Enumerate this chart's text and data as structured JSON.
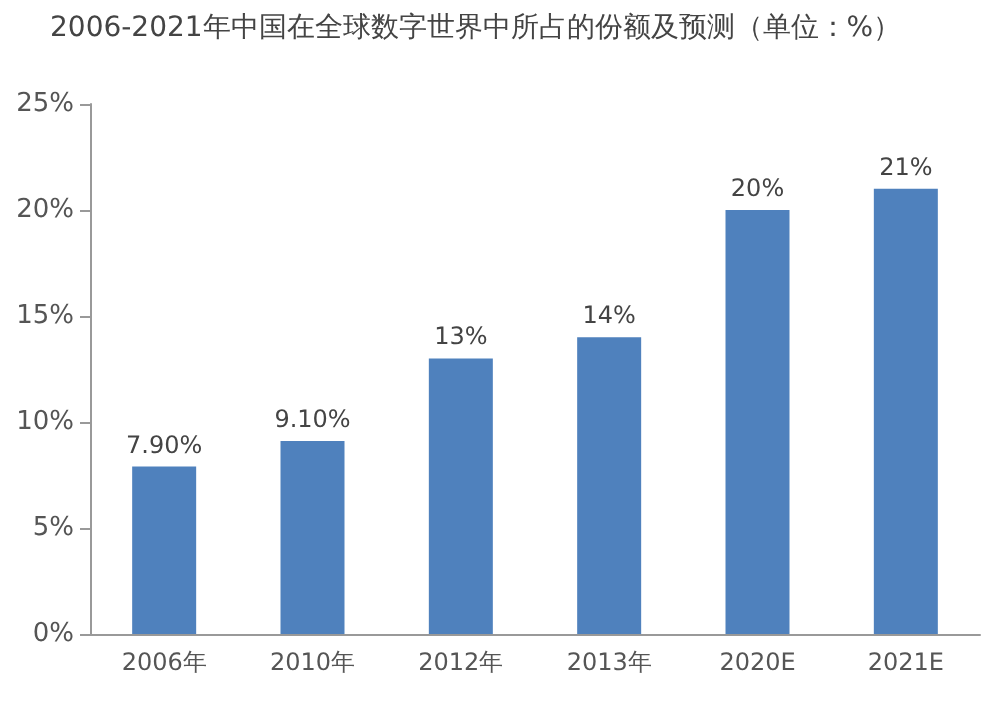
{
  "chart_data": {
    "type": "bar",
    "title": "2006-2021年中国在全球数字世界中所占的份额及预测（单位：%）",
    "categories": [
      "2006年",
      "2010年",
      "2012年",
      "2013年",
      "2020E",
      "2021E"
    ],
    "values": [
      7.9,
      9.1,
      13,
      14,
      20,
      21
    ],
    "value_labels": [
      "7.90%",
      "9.10%",
      "13%",
      "14%",
      "20%",
      "21%"
    ],
    "color": "#4f81bd",
    "ylim": [
      0,
      25
    ],
    "yticks": [
      {
        "value": 0,
        "label": "0%"
      },
      {
        "value": 5,
        "label": "5%"
      },
      {
        "value": 10,
        "label": "10%"
      },
      {
        "value": 15,
        "label": "15%"
      },
      {
        "value": 20,
        "label": "20%"
      },
      {
        "value": 25,
        "label": "25%"
      }
    ],
    "grid": false
  }
}
